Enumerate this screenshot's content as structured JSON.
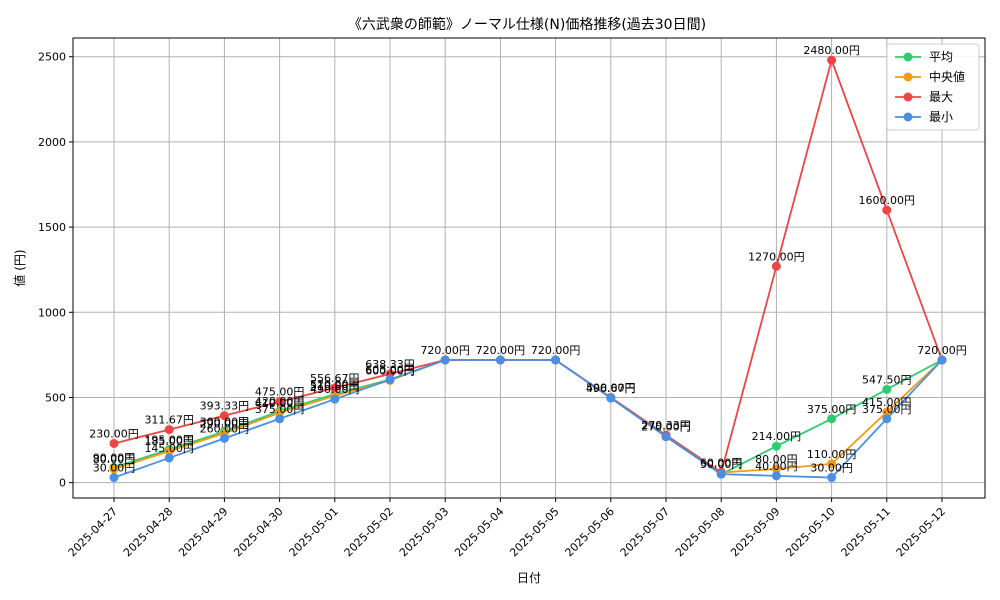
{
  "chart_data": {
    "type": "line",
    "title": "《六武衆の師範》ノーマル仕様(N)価格推移(過去30日間)",
    "xlabel": "日付",
    "ylabel": "値 (円)",
    "ylim": [
      -90,
      2610
    ],
    "yticks": [
      0,
      500,
      1000,
      1500,
      2000,
      2500
    ],
    "grid": true,
    "legend_position": "top-right",
    "categories": [
      "2025-04-27",
      "2025-04-28",
      "2025-04-29",
      "2025-04-30",
      "2025-05-01",
      "2025-05-02",
      "2025-05-03",
      "2025-05-04",
      "2025-05-05",
      "2025-05-06",
      "2025-05-07",
      "2025-05-08",
      "2025-05-09",
      "2025-05-10",
      "2025-05-11",
      "2025-05-12"
    ],
    "series": [
      {
        "name": "平均",
        "color": "#2ecc71",
        "values": [
          90,
          195,
          300,
          420,
          520,
          605,
          720,
          720,
          720,
          496.67,
          270,
          50,
          214,
          375,
          547.5,
          720
        ]
      },
      {
        "name": "中央値",
        "color": "#f39c12",
        "values": [
          80,
          185,
          290,
          410,
          510,
          600,
          720,
          720,
          720,
          496.67,
          270,
          60,
          80,
          110,
          415,
          720
        ]
      },
      {
        "name": "最大",
        "color": "#ef4444",
        "values": [
          230,
          311.67,
          393.33,
          475,
          556.67,
          638.33,
          720,
          720,
          720,
          500,
          279.33,
          60,
          1270,
          2480,
          1600,
          720
        ]
      },
      {
        "name": "最小",
        "color": "#4a90e2",
        "values": [
          30,
          145,
          260,
          375,
          490,
          605,
          720,
          720,
          720,
          496.67,
          270,
          50,
          40,
          30,
          375,
          720
        ]
      }
    ],
    "data_labels": [
      {
        "text": "230.00円",
        "x": 0,
        "y": 230
      },
      {
        "text": "90.00円",
        "x": 0,
        "y": 90
      },
      {
        "text": "80.00円",
        "x": 0,
        "y": 80
      },
      {
        "text": "30.00円",
        "x": 0,
        "y": 30
      },
      {
        "text": "311.67円",
        "x": 1,
        "y": 311.67
      },
      {
        "text": "195.00円",
        "x": 1,
        "y": 195
      },
      {
        "text": "185.00円",
        "x": 1,
        "y": 185
      },
      {
        "text": "145.00円",
        "x": 1,
        "y": 145
      },
      {
        "text": "393.33円",
        "x": 2,
        "y": 393.33
      },
      {
        "text": "300.00円",
        "x": 2,
        "y": 300
      },
      {
        "text": "290.00円",
        "x": 2,
        "y": 290
      },
      {
        "text": "260.00円",
        "x": 2,
        "y": 260
      },
      {
        "text": "475.00円",
        "x": 3,
        "y": 475
      },
      {
        "text": "420.00円",
        "x": 3,
        "y": 420
      },
      {
        "text": "410.00円",
        "x": 3,
        "y": 410
      },
      {
        "text": "375.00円",
        "x": 3,
        "y": 375
      },
      {
        "text": "556.67円",
        "x": 4,
        "y": 556.67
      },
      {
        "text": "520.00円",
        "x": 4,
        "y": 520
      },
      {
        "text": "510.00円",
        "x": 4,
        "y": 510
      },
      {
        "text": "490.00円",
        "x": 4,
        "y": 490
      },
      {
        "text": "638.33円",
        "x": 5,
        "y": 638.33
      },
      {
        "text": "605.00円",
        "x": 5,
        "y": 605
      },
      {
        "text": "600.00円",
        "x": 5,
        "y": 600
      },
      {
        "text": "720.00円",
        "x": 6,
        "y": 720
      },
      {
        "text": "720.00円",
        "x": 7,
        "y": 720
      },
      {
        "text": "720.00円",
        "x": 8,
        "y": 720
      },
      {
        "text": "496.67円",
        "x": 9,
        "y": 496.67
      },
      {
        "text": "500.00円",
        "x": 9,
        "y": 500
      },
      {
        "text": "279.33円",
        "x": 10,
        "y": 279.33
      },
      {
        "text": "270.00円",
        "x": 10,
        "y": 270
      },
      {
        "text": "60.00円",
        "x": 11,
        "y": 60
      },
      {
        "text": "50.00円",
        "x": 11,
        "y": 50
      },
      {
        "text": "214.00円",
        "x": 12,
        "y": 214
      },
      {
        "text": "1270.00円",
        "x": 12,
        "y": 1270
      },
      {
        "text": "80.00円",
        "x": 12,
        "y": 80
      },
      {
        "text": "40.00円",
        "x": 12,
        "y": 40
      },
      {
        "text": "2480.00円",
        "x": 13,
        "y": 2480
      },
      {
        "text": "375.00円",
        "x": 13,
        "y": 375
      },
      {
        "text": "110.00円",
        "x": 13,
        "y": 110
      },
      {
        "text": "30.00円",
        "x": 13,
        "y": 30
      },
      {
        "text": "1600.00円",
        "x": 14,
        "y": 1600
      },
      {
        "text": "547.50円",
        "x": 14,
        "y": 547.5
      },
      {
        "text": "415.00円",
        "x": 14,
        "y": 415
      },
      {
        "text": "375.00円",
        "x": 14,
        "y": 375
      },
      {
        "text": "720.00円",
        "x": 15,
        "y": 720
      }
    ]
  }
}
